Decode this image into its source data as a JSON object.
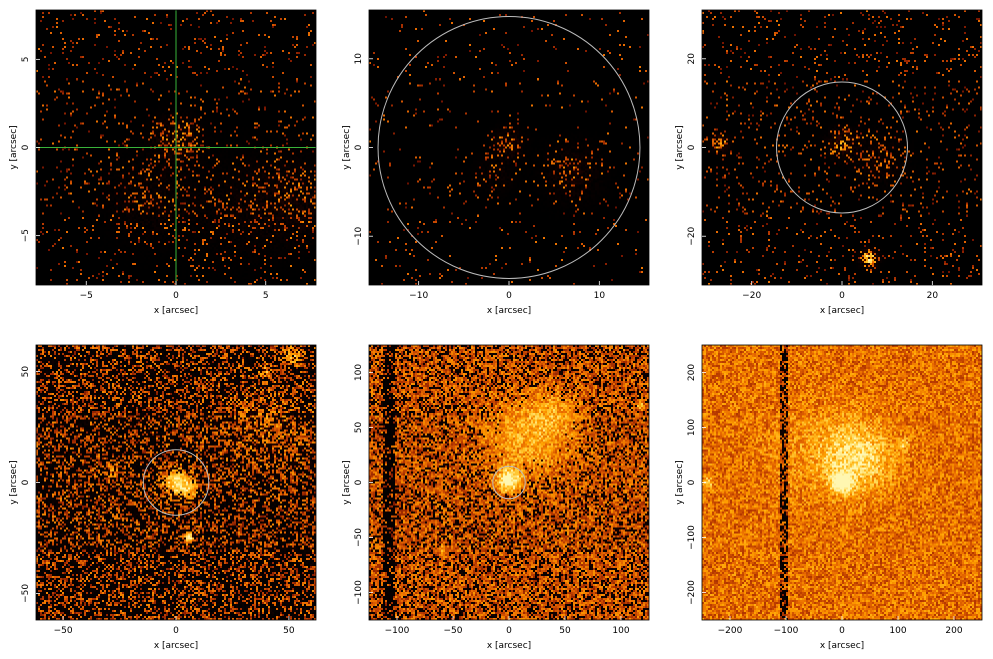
{
  "figure": {
    "background": "#ffffff",
    "image_colormap": [
      "#000000",
      "#3a0300",
      "#7a1600",
      "#b83a00",
      "#e86a00",
      "#ffa000",
      "#ffd040",
      "#fff6b0"
    ],
    "overlay_colors": {
      "circle": "#bcbcbc",
      "crosshair": "#39b33a"
    }
  },
  "chart_data": [
    {
      "type": "heatmap",
      "panel": "top-left",
      "title": "",
      "xlabel": "x [arcsec]",
      "ylabel": "y [arcsec]",
      "xlim": [
        -7.8,
        7.8
      ],
      "ylim": [
        -7.8,
        7.8
      ],
      "xticks": [
        -5,
        0,
        5
      ],
      "yticks": [
        -5,
        0,
        5
      ],
      "xtick_labels": [
        "−5",
        "0",
        "5"
      ],
      "ytick_labels": [
        "−5",
        "0",
        "5"
      ],
      "density": 0.05,
      "brightness": 0.0,
      "overlay": {
        "type": "crosshair",
        "center": [
          0,
          0
        ]
      },
      "features": [
        {
          "x": 0,
          "y": 0.5,
          "sigma": 0.8,
          "amp": 0.3
        },
        {
          "x": -1.5,
          "y": -3.0,
          "sigma": 1.5,
          "amp": 0.12
        },
        {
          "x": 6.5,
          "y": -3.0,
          "sigma": 1.5,
          "amp": 0.15
        },
        {
          "x": 3.5,
          "y": -3.5,
          "sigma": 2.0,
          "amp": 0.08
        }
      ]
    },
    {
      "type": "heatmap",
      "panel": "top-center",
      "title": "",
      "xlabel": "x [arcsec]",
      "ylabel": "y [arcsec]",
      "xlim": [
        -15.5,
        15.5
      ],
      "ylim": [
        -15.5,
        15.5
      ],
      "xticks": [
        -10,
        0,
        10
      ],
      "yticks": [
        -10,
        0,
        10
      ],
      "xtick_labels": [
        "−10",
        "0",
        "10"
      ],
      "ytick_labels": [
        "−10",
        "0",
        "10"
      ],
      "density": 0.025,
      "brightness": 0.0,
      "overlay": {
        "type": "circle",
        "center": [
          0,
          0
        ],
        "radius": 14.5
      },
      "features": [
        {
          "x": 0,
          "y": 0.5,
          "sigma": 1.0,
          "amp": 0.3
        },
        {
          "x": 7.0,
          "y": -3.0,
          "sigma": 2.0,
          "amp": 0.18
        },
        {
          "x": -1.5,
          "y": -3.0,
          "sigma": 1.5,
          "amp": 0.1
        }
      ]
    },
    {
      "type": "heatmap",
      "panel": "top-right",
      "title": "",
      "xlabel": "x [arcsec]",
      "ylabel": "y [arcsec]",
      "xlim": [
        -31,
        31
      ],
      "ylim": [
        -31,
        31
      ],
      "xticks": [
        -20,
        0,
        20
      ],
      "yticks": [
        -20,
        0,
        20
      ],
      "xtick_labels": [
        "−20",
        "0",
        "20"
      ],
      "ytick_labels": [
        "−20",
        "0",
        "20"
      ],
      "density": 0.06,
      "brightness": 0.0,
      "overlay": {
        "type": "circle",
        "center": [
          0,
          0
        ],
        "radius": 14.5
      },
      "features": [
        {
          "x": 0,
          "y": 1,
          "sigma": 2.0,
          "amp": 0.4
        },
        {
          "x": 6,
          "y": -25,
          "sigma": 1.2,
          "amp": 0.8
        },
        {
          "x": -27,
          "y": 1,
          "sigma": 1.2,
          "amp": 0.5
        },
        {
          "x": 8,
          "y": -3,
          "sigma": 4.0,
          "amp": 0.15
        }
      ]
    },
    {
      "type": "heatmap",
      "panel": "bottom-left",
      "title": "",
      "xlabel": "x [arcsec]",
      "ylabel": "y [arcsec]",
      "xlim": [
        -62,
        62
      ],
      "ylim": [
        -62,
        62
      ],
      "xticks": [
        -50,
        0,
        50
      ],
      "yticks": [
        -50,
        0,
        50
      ],
      "xtick_labels": [
        "−50",
        "0",
        "50"
      ],
      "ytick_labels": [
        "−50",
        "0",
        "50"
      ],
      "density": 0.28,
      "brightness": 0.1,
      "overlay": {
        "type": "circle",
        "center": [
          0,
          0
        ],
        "radius": 14.5
      },
      "features": [
        {
          "x": 0,
          "y": 0,
          "sigma": 4.0,
          "amp": 0.8
        },
        {
          "x": 6,
          "y": -3,
          "sigma": 3.0,
          "amp": 0.5
        },
        {
          "x": 6,
          "y": -25,
          "sigma": 1.5,
          "amp": 0.9
        },
        {
          "x": 40,
          "y": 25,
          "sigma": 12.0,
          "amp": 0.2
        },
        {
          "x": 52,
          "y": 57,
          "sigma": 3.0,
          "amp": 0.5
        },
        {
          "x": 40,
          "y": 50,
          "sigma": 2.0,
          "amp": 0.4
        },
        {
          "x": -28,
          "y": 5,
          "sigma": 2.0,
          "amp": 0.3
        }
      ]
    },
    {
      "type": "heatmap",
      "panel": "bottom-center",
      "title": "",
      "xlabel": "x [arcsec]",
      "ylabel": "y [arcsec]",
      "xlim": [
        -125,
        125
      ],
      "ylim": [
        -125,
        125
      ],
      "xticks": [
        -100,
        -50,
        0,
        50,
        100
      ],
      "yticks": [
        -100,
        -50,
        0,
        50,
        100
      ],
      "xtick_labels": [
        "−100",
        "−50",
        "0",
        "50",
        "100"
      ],
      "ytick_labels": [
        "−100",
        "−50",
        "0",
        "50",
        "100"
      ],
      "density": 0.55,
      "brightness": 0.16,
      "dark_column": {
        "x_from": -112,
        "x_to": -102,
        "factor": 0.35
      },
      "overlay": {
        "type": "circle",
        "center": [
          0,
          0
        ],
        "radius": 14.5
      },
      "features": [
        {
          "x": 0,
          "y": 2,
          "sigma": 7.0,
          "amp": 1.0
        },
        {
          "x": 15,
          "y": 40,
          "sigma": 25.0,
          "amp": 0.4
        },
        {
          "x": 40,
          "y": 60,
          "sigma": 15.0,
          "amp": 0.3
        },
        {
          "x": 117,
          "y": 70,
          "sigma": 2.0,
          "amp": 0.6
        },
        {
          "x": -60,
          "y": -60,
          "sigma": 2.0,
          "amp": 0.4
        }
      ]
    },
    {
      "type": "heatmap",
      "panel": "bottom-right",
      "title": "",
      "xlabel": "x [arcsec]",
      "ylabel": "y [arcsec]",
      "xlim": [
        -250,
        250
      ],
      "ylim": [
        -250,
        250
      ],
      "xticks": [
        -200,
        -100,
        0,
        100,
        200
      ],
      "yticks": [
        -200,
        -100,
        0,
        100,
        200
      ],
      "xtick_labels": [
        "−200",
        "−100",
        "0",
        "100",
        "200"
      ],
      "ytick_labels": [
        "−200",
        "−100",
        "0",
        "100",
        "200"
      ],
      "density": 0.8,
      "brightness": 0.28,
      "dark_column": {
        "x_from": -112,
        "x_to": -95,
        "factor": 0.4
      },
      "overlay": null,
      "features": [
        {
          "x": 0,
          "y": 0,
          "sigma": 12.0,
          "amp": 1.1
        },
        {
          "x": 25,
          "y": 45,
          "sigma": 45.0,
          "amp": 0.6
        },
        {
          "x": -240,
          "y": 0,
          "sigma": 6.0,
          "amp": 0.6
        },
        {
          "x": 110,
          "y": 70,
          "sigma": 6.0,
          "amp": 0.5
        },
        {
          "x": -60,
          "y": 60,
          "sigma": 60.0,
          "amp": 0.15
        }
      ]
    }
  ]
}
